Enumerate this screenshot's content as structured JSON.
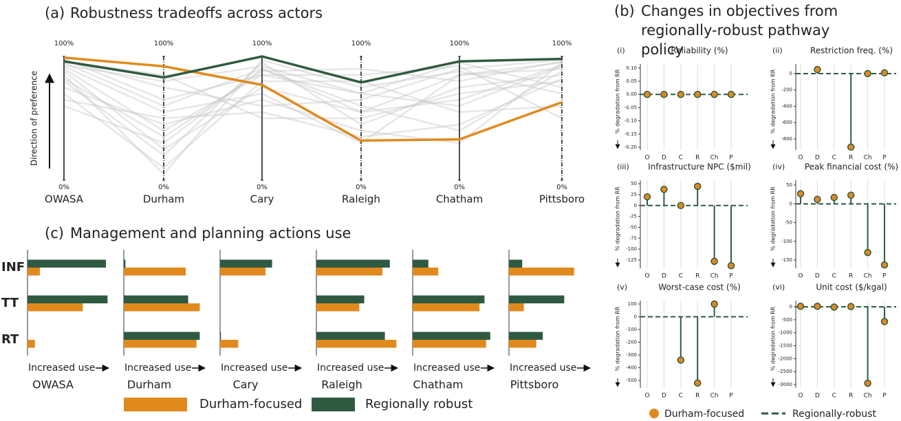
{
  "chart_data": [
    {
      "type": "parallel",
      "label": "(a)",
      "title": "Robustness tradeoffs across actors",
      "ylabel": "Direction of preference",
      "axes": [
        "OWASA",
        "Durham",
        "Cary",
        "Raleigh",
        "Chatham",
        "Pittsboro"
      ],
      "ylim": [
        0,
        100
      ],
      "yticks": [
        {
          "value": 0,
          "label": "0%"
        },
        {
          "value": 100,
          "label": "100%"
        }
      ],
      "background_color": "#c8c8c8",
      "background": [
        [
          95,
          60,
          90,
          55,
          85,
          95
        ],
        [
          90,
          40,
          85,
          70,
          60,
          92
        ],
        [
          80,
          20,
          95,
          45,
          75,
          85
        ],
        [
          97,
          75,
          60,
          65,
          90,
          97
        ],
        [
          70,
          10,
          80,
          80,
          55,
          60
        ],
        [
          92,
          55,
          70,
          30,
          85,
          90
        ],
        [
          60,
          30,
          90,
          60,
          40,
          88
        ],
        [
          96,
          85,
          50,
          50,
          70,
          80
        ],
        [
          85,
          5,
          97,
          75,
          88,
          70
        ],
        [
          75,
          45,
          65,
          40,
          30,
          95
        ],
        [
          98,
          65,
          85,
          85,
          92,
          50
        ],
        [
          88,
          25,
          75,
          55,
          65,
          93
        ],
        [
          93,
          80,
          92,
          70,
          95,
          75
        ],
        [
          65,
          50,
          55,
          35,
          45,
          82
        ],
        [
          82,
          35,
          88,
          90,
          80,
          96
        ]
      ],
      "series": [
        {
          "color": "#e08a1e",
          "values": [
            99,
            92,
            77,
            32,
            33,
            63
          ]
        },
        {
          "color": "#2f5a42",
          "values": [
            96,
            83,
            100,
            79,
            96,
            98
          ]
        }
      ]
    },
    {
      "type": "lollipop",
      "label": "(b)",
      "title": "Changes in objectives from regionally-robust pathway policy",
      "categories": [
        "O",
        "D",
        "C",
        "R",
        "Ch",
        "P"
      ],
      "ylabel": "% degradation from RR",
      "baseline": 0,
      "series": [
        {
          "name": "Durham-focused",
          "color": "#e08a1e"
        },
        {
          "name": "Regionally-robust",
          "color": "#2f5a42"
        }
      ],
      "subplots": [
        {
          "label": "(i)",
          "title": "Reliability (%)",
          "values": [
            0,
            0,
            0,
            0,
            0,
            0
          ],
          "ylim": [
            -0.21,
            0.115
          ],
          "yticks": [
            {
              "value": 0.1,
              "label": "0.10"
            },
            {
              "value": 0.05,
              "label": "0.05"
            },
            {
              "value": 0,
              "label": "0.00"
            },
            {
              "value": -0.05,
              "label": "-0.05"
            },
            {
              "value": -0.1,
              "label": "-0.10"
            },
            {
              "value": -0.15,
              "label": "-0.15"
            },
            {
              "value": -0.2,
              "label": "-0.20"
            }
          ]
        },
        {
          "label": "(ii)",
          "title": "Restriction freq. (%)",
          "values": [
            null,
            50,
            null,
            -900,
            0,
            10
          ],
          "ylim": [
            -935,
            118
          ],
          "yticks": [
            0,
            -200,
            -400,
            -600,
            -800
          ]
        },
        {
          "label": "(iii)",
          "title": "Infrastructure NPC ($mil)",
          "values": [
            20,
            37,
            0,
            44,
            -128,
            -138
          ],
          "ylim": [
            -144,
            58
          ],
          "yticks": [
            50,
            25,
            0,
            -25,
            -50,
            -75,
            -100,
            -125
          ]
        },
        {
          "label": "(iv)",
          "title": "Peak financial cost (%)",
          "values": [
            27,
            12,
            17,
            23,
            -130,
            -163
          ],
          "ylim": [
            -172,
            63
          ],
          "yticks": [
            50,
            0,
            -50,
            -100,
            -150
          ]
        },
        {
          "label": "(v)",
          "title": "Worst-case cost (%)",
          "values": [
            null,
            null,
            -340,
            -520,
            100,
            null
          ],
          "ylim": [
            -559,
            127
          ],
          "yticks": [
            100,
            0,
            -100,
            -200,
            -300,
            -400,
            -500
          ]
        },
        {
          "label": "(vi)",
          "title": "Unit cost ($/kgal)",
          "values": [
            20,
            20,
            -10,
            10,
            -2950,
            -570
          ],
          "ylim": [
            -3133,
            239
          ],
          "yticks": [
            0,
            -500,
            -1000,
            -1500,
            -2000,
            -2500,
            -3000
          ]
        }
      ]
    },
    {
      "type": "hbar",
      "label": "(c)",
      "title": "Management and planning actions use",
      "categories": [
        "INF",
        "TT",
        "RT"
      ],
      "xlabel": "Increased use",
      "xlim": [
        0,
        100
      ],
      "series": [
        {
          "name": "Durham-focused",
          "color": "#e08a1e"
        },
        {
          "name": "Regionally robust",
          "color": "#2f5a42"
        }
      ],
      "panels": [
        {
          "title": "OWASA",
          "values": [
            [
              15,
              67,
              9
            ],
            [
              95,
              97,
              0
            ]
          ]
        },
        {
          "title": "Durham",
          "values": [
            [
              75,
              92,
              88
            ],
            [
              2,
              78,
              92
            ]
          ]
        },
        {
          "title": "Cary",
          "values": [
            [
              55,
              0,
              22
            ],
            [
              63,
              0,
              1
            ]
          ]
        },
        {
          "title": "Raleigh",
          "values": [
            [
              80,
              52,
              97
            ],
            [
              89,
              58,
              83
            ]
          ]
        },
        {
          "title": "Chatham",
          "values": [
            [
              31,
              81,
              89
            ],
            [
              19,
              87,
              94
            ]
          ]
        },
        {
          "title": "Pittsboro",
          "values": [
            [
              79,
              18,
              33
            ],
            [
              16,
              67,
              41
            ]
          ]
        }
      ]
    }
  ]
}
